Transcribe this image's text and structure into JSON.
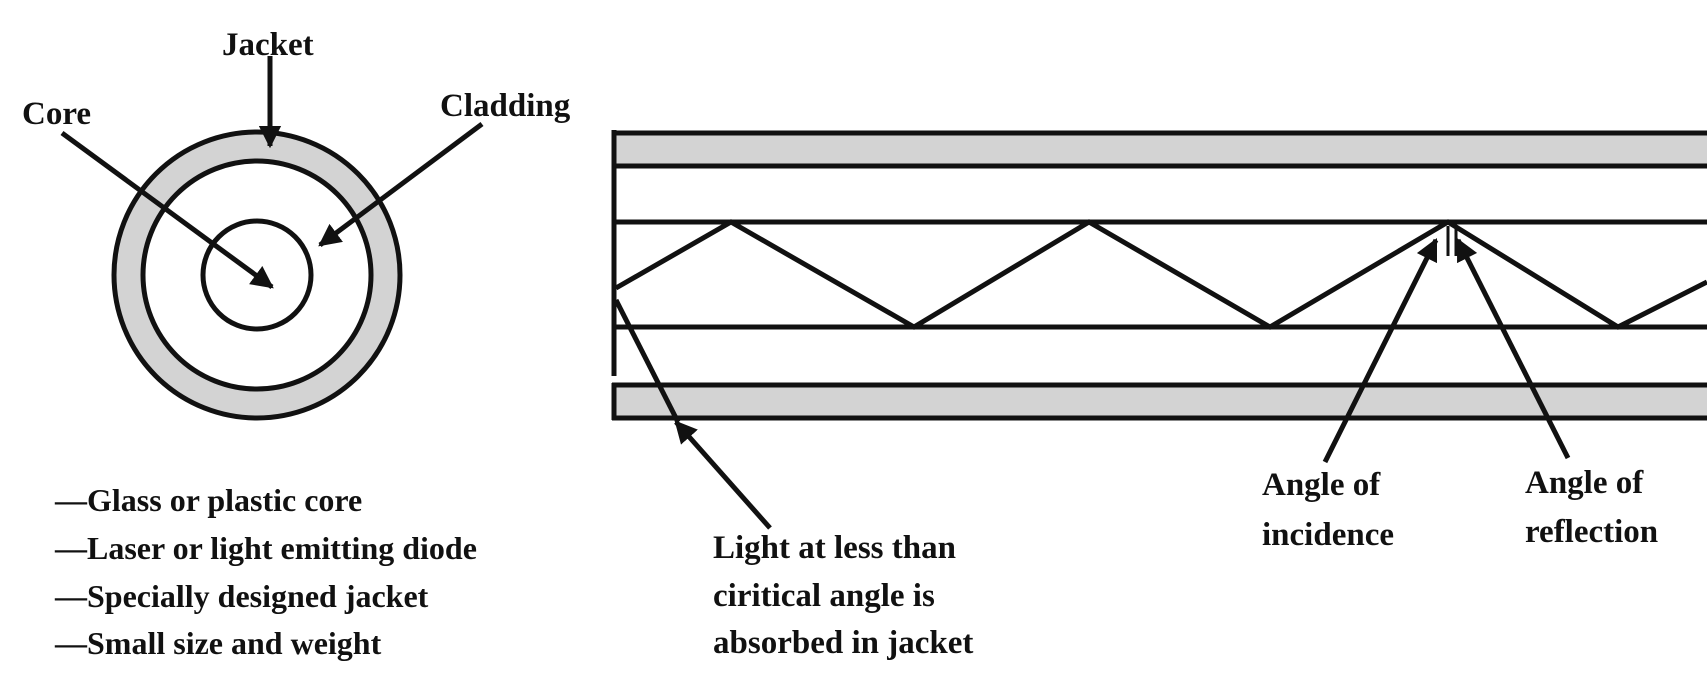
{
  "cross_section": {
    "labels": {
      "jacket": "Jacket",
      "core": "Core",
      "cladding": "Cladding"
    }
  },
  "features": [
    "—Glass or plastic core",
    "—Laser or light emitting diode",
    "—Specially designed jacket",
    "—Small size and weight"
  ],
  "fiber": {
    "absorbed_note": [
      "Light at less than",
      "ciritical angle is",
      "absorbed in jacket"
    ],
    "incidence_label": [
      "Angle of",
      "incidence"
    ],
    "reflection_label": [
      "Angle of",
      "reflection"
    ]
  },
  "colors": {
    "stroke": "#111111",
    "jacket_fill": "#d3d3d3",
    "background": "#ffffff"
  }
}
